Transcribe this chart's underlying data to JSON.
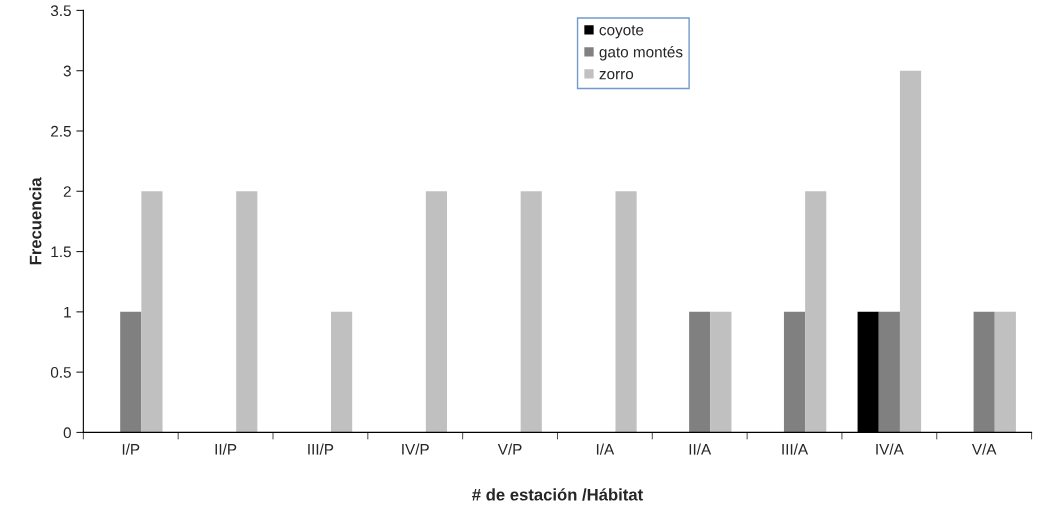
{
  "chart_data": {
    "type": "bar",
    "xlabel": "# de estación /Hábitat",
    "ylabel": "Frecuencia",
    "categories": [
      "I/P",
      "II/P",
      "III/P",
      "IV/P",
      "V/P",
      "I/A",
      "II/A",
      "III/A",
      "IV/A",
      "V/A"
    ],
    "series": [
      {
        "name": "coyote",
        "color": "#000000",
        "values": [
          0,
          0,
          0,
          0,
          0,
          0,
          0,
          0,
          1,
          0
        ]
      },
      {
        "name": "gato montés",
        "color": "#808080",
        "values": [
          1,
          0,
          0,
          0,
          0,
          0,
          1,
          1,
          1,
          1
        ]
      },
      {
        "name": "zorro",
        "color": "#c0c0c0",
        "values": [
          2,
          2,
          1,
          2,
          2,
          2,
          1,
          2,
          3,
          1
        ]
      }
    ],
    "ylim": [
      0,
      3.5
    ],
    "yticks": [
      0,
      0.5,
      1,
      1.5,
      2,
      2.5,
      3,
      3.5
    ],
    "grid": false,
    "legend": "top"
  }
}
